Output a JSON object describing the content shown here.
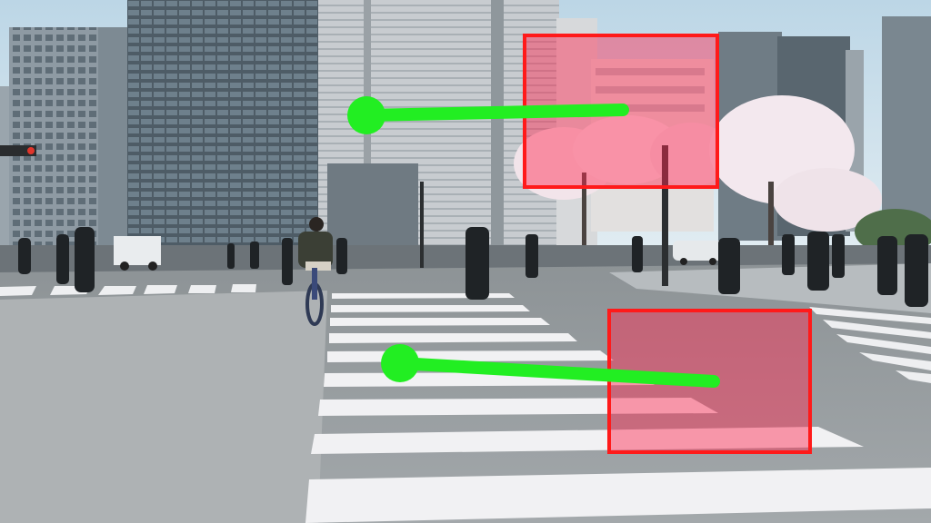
{
  "scene": {
    "description_colors": {
      "sky": "#cfe2ec",
      "road": "#8f9497",
      "crosswalk": "#f2f2f4",
      "building_dark": "#5b6a74",
      "building_light": "#c9ced2",
      "blossom": "#f4e6ec"
    },
    "sign_text": "",
    "icon": "street-scene"
  },
  "annotations": {
    "box_color": "#ff1a1a",
    "box_fill": "rgba(255,40,80,0.45)",
    "arrow_color": "#22ee22"
  }
}
